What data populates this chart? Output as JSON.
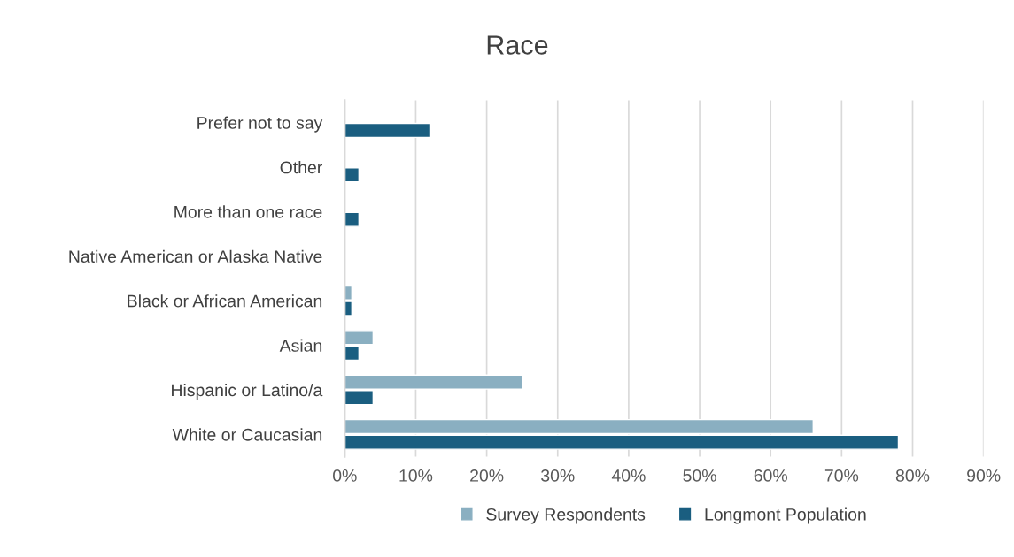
{
  "chart_data": {
    "type": "bar",
    "orientation": "horizontal",
    "title": "Race",
    "categories": [
      "Prefer not to say",
      "Other",
      "More than one race",
      "Native American or Alaska Native",
      "Black or African American",
      "Asian",
      "Hispanic or Latino/a",
      "White or Caucasian"
    ],
    "series": [
      {
        "name": "Survey Respondents",
        "color": "#8aafc1",
        "values": [
          null,
          null,
          null,
          null,
          1,
          4,
          25,
          66
        ]
      },
      {
        "name": "Longmont Population",
        "color": "#1a5e80",
        "values": [
          12,
          2,
          2,
          null,
          1,
          2,
          4,
          78
        ]
      }
    ],
    "xlim": [
      0,
      90
    ],
    "xticks": [
      {
        "value": 0,
        "label": "0%"
      },
      {
        "value": 10,
        "label": "10%"
      },
      {
        "value": 20,
        "label": "20%"
      },
      {
        "value": 30,
        "label": "30%"
      },
      {
        "value": 40,
        "label": "40%"
      },
      {
        "value": 50,
        "label": "50%"
      },
      {
        "value": 60,
        "label": "60%"
      },
      {
        "value": 70,
        "label": "70%"
      },
      {
        "value": 80,
        "label": "80%"
      },
      {
        "value": 90,
        "label": "90%"
      }
    ],
    "grid": "x",
    "legend": "bottom"
  }
}
